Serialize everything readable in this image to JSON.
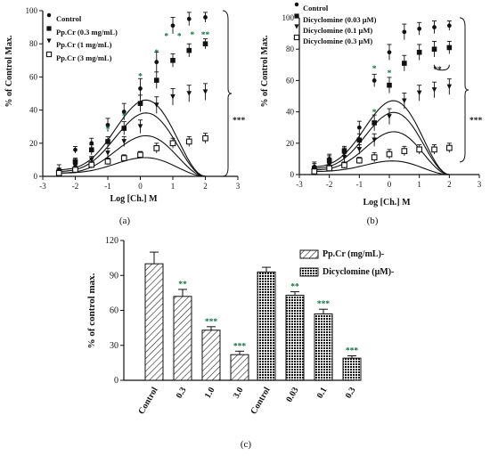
{
  "chart_data": [
    {
      "id": "a",
      "type": "line",
      "panel_label": "(a)",
      "xlabel": "Log [Ch.] M",
      "ylabel": "% of Control Max.",
      "xlim": [
        -3,
        3
      ],
      "ylim": [
        0,
        100
      ],
      "xticks": [
        "-3",
        "-2",
        "-1",
        "0",
        "1",
        "2",
        "3"
      ],
      "yticks": [
        "0",
        "20",
        "40",
        "60",
        "80",
        "100"
      ],
      "legend_position": "top-left",
      "bracket_label": "***",
      "series": [
        {
          "name": "Control",
          "marker": "circle",
          "x": [
            -2.5,
            -2.0,
            -1.5,
            -1.0,
            -0.5,
            0.0,
            0.5,
            1.0,
            1.5,
            2.0
          ],
          "y": [
            4,
            16,
            20,
            31,
            39,
            53,
            69,
            91,
            95,
            96
          ],
          "err": [
            3,
            2,
            3,
            4,
            5,
            6,
            6,
            5,
            4,
            3
          ]
        },
        {
          "name": "Pp.Cr (0.3 mg/mL)",
          "marker": "square",
          "x": [
            -2.5,
            -2.0,
            -1.5,
            -1.0,
            -0.5,
            0.0,
            0.5,
            1.0,
            1.5,
            2.0
          ],
          "y": [
            3,
            9,
            16,
            21,
            29,
            44,
            58,
            70,
            76,
            80
          ],
          "err": [
            2,
            2,
            3,
            3,
            4,
            5,
            5,
            4,
            4,
            3
          ]
        },
        {
          "name": "Pp.Cr (1 mg/mL)",
          "marker": "triangle-down",
          "x": [
            -2.5,
            -2.0,
            -1.5,
            -1.0,
            -0.5,
            0.0,
            0.5,
            1.0,
            1.5,
            2.0
          ],
          "y": [
            2,
            6,
            10,
            14,
            21,
            30,
            43,
            48,
            50,
            51
          ],
          "err": [
            2,
            2,
            2,
            3,
            3,
            4,
            5,
            5,
            5,
            5
          ]
        },
        {
          "name": "Pp.Cr (3 mg/mL)",
          "marker": "square-open",
          "x": [
            -2.5,
            -2.0,
            -1.5,
            -1.0,
            -0.5,
            0.0,
            0.5,
            1.0,
            1.5,
            2.0
          ],
          "y": [
            2,
            4,
            7,
            9,
            11,
            13,
            17,
            20,
            21,
            23
          ],
          "err": [
            1,
            2,
            2,
            2,
            2,
            2,
            3,
            3,
            3,
            3
          ]
        }
      ],
      "annotations": [
        {
          "text": "*",
          "x": -1.0,
          "y": 27
        },
        {
          "text": "*",
          "x": -0.5,
          "y": 35
        },
        {
          "text": "*",
          "x": 0.0,
          "y": 59
        },
        {
          "text": "*",
          "x": 0.5,
          "y": 73
        },
        {
          "text": "*",
          "x": 0.8,
          "y": 83
        },
        {
          "text": "*",
          "x": 1.2,
          "y": 83
        },
        {
          "text": "*",
          "x": 1.6,
          "y": 84
        },
        {
          "text": "**",
          "x": 2.0,
          "y": 84
        }
      ]
    },
    {
      "id": "b",
      "type": "line",
      "panel_label": "(b)",
      "xlabel": "Log [Ch.] M",
      "ylabel": "% of Control Max.",
      "xlim": [
        -3,
        3
      ],
      "ylim": [
        0,
        100
      ],
      "xticks": [
        "-3",
        "-2",
        "-1",
        "0",
        "1",
        "2",
        "3"
      ],
      "yticks": [
        "0",
        "20",
        "40",
        "60",
        "80",
        "100"
      ],
      "legend_position": "top-left",
      "bracket_label": "***",
      "subbracket_label": "**",
      "series": [
        {
          "name": "Control",
          "marker": "circle",
          "x": [
            -2.5,
            -2.0,
            -1.5,
            -1.0,
            -0.5,
            0.0,
            0.5,
            1.0,
            1.5,
            2.0
          ],
          "y": [
            5,
            10,
            14,
            30,
            60,
            78,
            91,
            93,
            94,
            95
          ],
          "err": [
            3,
            3,
            3,
            4,
            4,
            5,
            5,
            4,
            4,
            3
          ]
        },
        {
          "name": "Dicyclomine (0.03 μM)",
          "marker": "square",
          "x": [
            -2.5,
            -2.0,
            -1.5,
            -1.0,
            -0.5,
            0.0,
            0.5,
            1.0,
            1.5,
            2.0
          ],
          "y": [
            4,
            9,
            15,
            22,
            33,
            57,
            71,
            78,
            80,
            81
          ],
          "err": [
            3,
            3,
            3,
            4,
            5,
            5,
            5,
            5,
            5,
            4
          ]
        },
        {
          "name": "Dicyclomine (0.1  μM)",
          "marker": "triangle-down",
          "x": [
            -2.5,
            -2.0,
            -1.5,
            -1.0,
            -0.5,
            0.0,
            0.5,
            1.0,
            1.5,
            2.0
          ],
          "y": [
            3,
            6,
            11,
            16,
            22,
            37,
            47,
            52,
            54,
            56
          ],
          "err": [
            2,
            2,
            3,
            3,
            4,
            5,
            5,
            5,
            5,
            5
          ]
        },
        {
          "name": "Dicyclomine (0.3  μM)",
          "marker": "square-open",
          "x": [
            -2.5,
            -2.0,
            -1.5,
            -1.0,
            -0.5,
            0.0,
            0.5,
            1.0,
            1.5,
            2.0
          ],
          "y": [
            2,
            4,
            6,
            9,
            11,
            13,
            15,
            16,
            16,
            17
          ],
          "err": [
            2,
            2,
            2,
            2,
            3,
            3,
            3,
            3,
            3,
            3
          ]
        }
      ],
      "annotations": [
        {
          "text": "*",
          "x": -0.5,
          "y": 38
        },
        {
          "text": "*",
          "x": -0.5,
          "y": 66
        },
        {
          "text": "*",
          "x": 0.0,
          "y": 63
        }
      ]
    },
    {
      "id": "c",
      "type": "bar",
      "panel_label": "(c)",
      "ylabel": "% of control max.",
      "ylim": [
        0,
        120
      ],
      "yticks": [
        "0",
        "30",
        "60",
        "90",
        "120"
      ],
      "legend_position": "top-right",
      "groups": [
        {
          "name": "Pp.Cr (mg/mL)-",
          "pattern": "hatch",
          "categories": [
            "Control",
            "0.3",
            "1.0",
            "3.0"
          ],
          "values": [
            100,
            72,
            43,
            22
          ],
          "err": [
            10,
            6,
            3,
            3
          ],
          "stars": [
            "",
            "**",
            "***",
            "***"
          ]
        },
        {
          "name": "Dicyclomine (μM)-",
          "pattern": "dots",
          "categories": [
            "Control",
            "0.03",
            "0.1",
            "0.3"
          ],
          "values": [
            93,
            73,
            57,
            19
          ],
          "err": [
            4,
            3,
            4,
            2
          ],
          "stars": [
            "",
            "**",
            "***",
            "***"
          ]
        }
      ]
    }
  ]
}
